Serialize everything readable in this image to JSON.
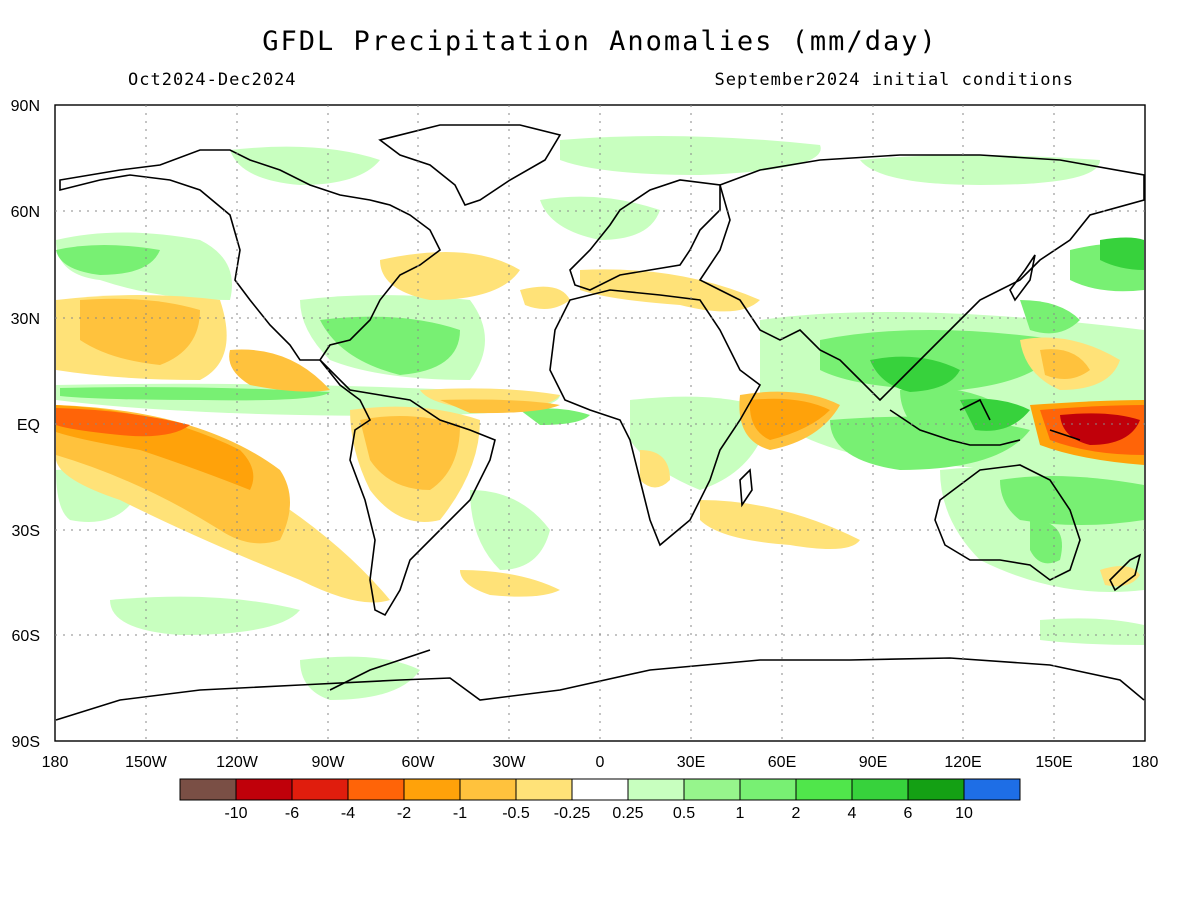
{
  "title": "GFDL Precipitation Anomalies (mm/day)",
  "period": "Oct2024-Dec2024",
  "init": "September2024 initial conditions",
  "lat_labels": [
    "90N",
    "60N",
    "30N",
    "EQ",
    "30S",
    "60S",
    "90S"
  ],
  "lon_labels": [
    "180",
    "150W",
    "120W",
    "90W",
    "60W",
    "30W",
    "0",
    "30E",
    "60E",
    "90E",
    "120E",
    "150E",
    "180"
  ],
  "colorbar": {
    "colors": [
      "#7a4f45",
      "#c0000a",
      "#e01d0d",
      "#ff6408",
      "#ffa20a",
      "#ffc23d",
      "#ffe278",
      "#ffffff",
      "#c8ffbf",
      "#96f58c",
      "#78f073",
      "#50e64b",
      "#37d23c",
      "#14a014",
      "#1e6ee6"
    ],
    "labels": [
      "-10",
      "-6",
      "-4",
      "-2",
      "-1",
      "-0.5",
      "-0.25",
      "0.25",
      "0.5",
      "1",
      "2",
      "4",
      "6",
      "10"
    ]
  },
  "colors": {
    "wet_light": "#c8ffbf",
    "wet_mid": "#78f073",
    "wet_strong": "#37d23c",
    "dry_light": "#ffe278",
    "dry_mid": "#ffc23d",
    "dry_strong": "#ffa20a",
    "dry_heavy": "#ff6408",
    "dry_extreme": "#c0000a"
  }
}
